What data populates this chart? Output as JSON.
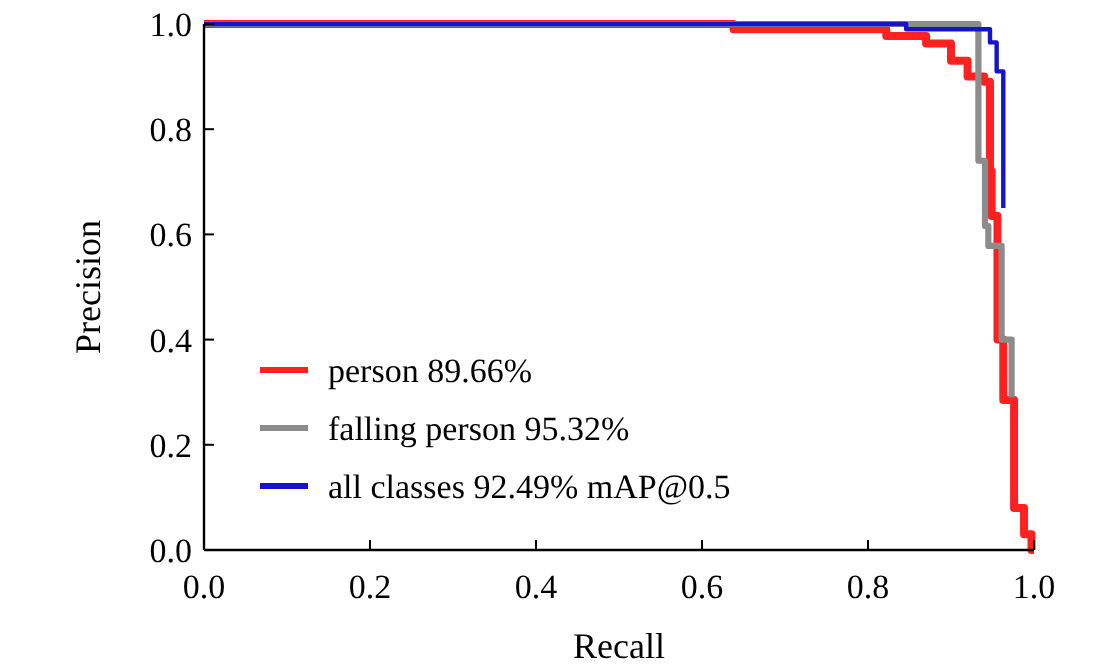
{
  "chart_data": {
    "type": "step",
    "xlabel": "Recall",
    "ylabel": "Precision",
    "xlim": [
      0,
      1
    ],
    "ylim": [
      0,
      1
    ],
    "xticks": [
      {
        "value": 0,
        "label": "0.0"
      },
      {
        "value": 0.2,
        "label": "0.2"
      },
      {
        "value": 0.4,
        "label": "0.4"
      },
      {
        "value": 0.6,
        "label": "0.6"
      },
      {
        "value": 0.8,
        "label": "0.8"
      },
      {
        "value": 1,
        "label": "1.0"
      }
    ],
    "yticks": [
      {
        "value": 0,
        "label": "0.0"
      },
      {
        "value": 0.2,
        "label": "0.2"
      },
      {
        "value": 0.4,
        "label": "0.4"
      },
      {
        "value": 0.6,
        "label": "0.6"
      },
      {
        "value": 0.8,
        "label": "0.8"
      },
      {
        "value": 1,
        "label": "1.0"
      }
    ],
    "grid": false,
    "legend": "bottom left",
    "marker": "none",
    "line_style": "solid",
    "series": [
      {
        "name": "person 89.66%",
        "color": "#ff2020",
        "x": [
          0,
          0.638,
          0.822,
          0.87,
          0.9,
          0.92,
          0.94,
          0.947,
          0.949,
          0.956,
          0.963,
          0.976,
          0.988,
          0.997,
          1.0
        ],
        "values": [
          1,
          0.99,
          0.977,
          0.963,
          0.93,
          0.9,
          0.89,
          0.72,
          0.635,
          0.4,
          0.285,
          0.08,
          0.03,
          0,
          0
        ]
      },
      {
        "name": "falling person 95.32%",
        "color": "#8c8c8c",
        "x": [
          0,
          0.933,
          0.941,
          0.945,
          0.961,
          0.973
        ],
        "values": [
          1,
          0.74,
          0.616,
          0.578,
          0.4,
          0.29
        ]
      },
      {
        "name": "all classes 92.49% mAP@0.5",
        "color": "#1414c8",
        "x": [
          0,
          0.846,
          0.947,
          0.955,
          0.963
        ],
        "values": [
          1,
          0.99,
          0.965,
          0.91,
          0.65
        ]
      }
    ]
  }
}
